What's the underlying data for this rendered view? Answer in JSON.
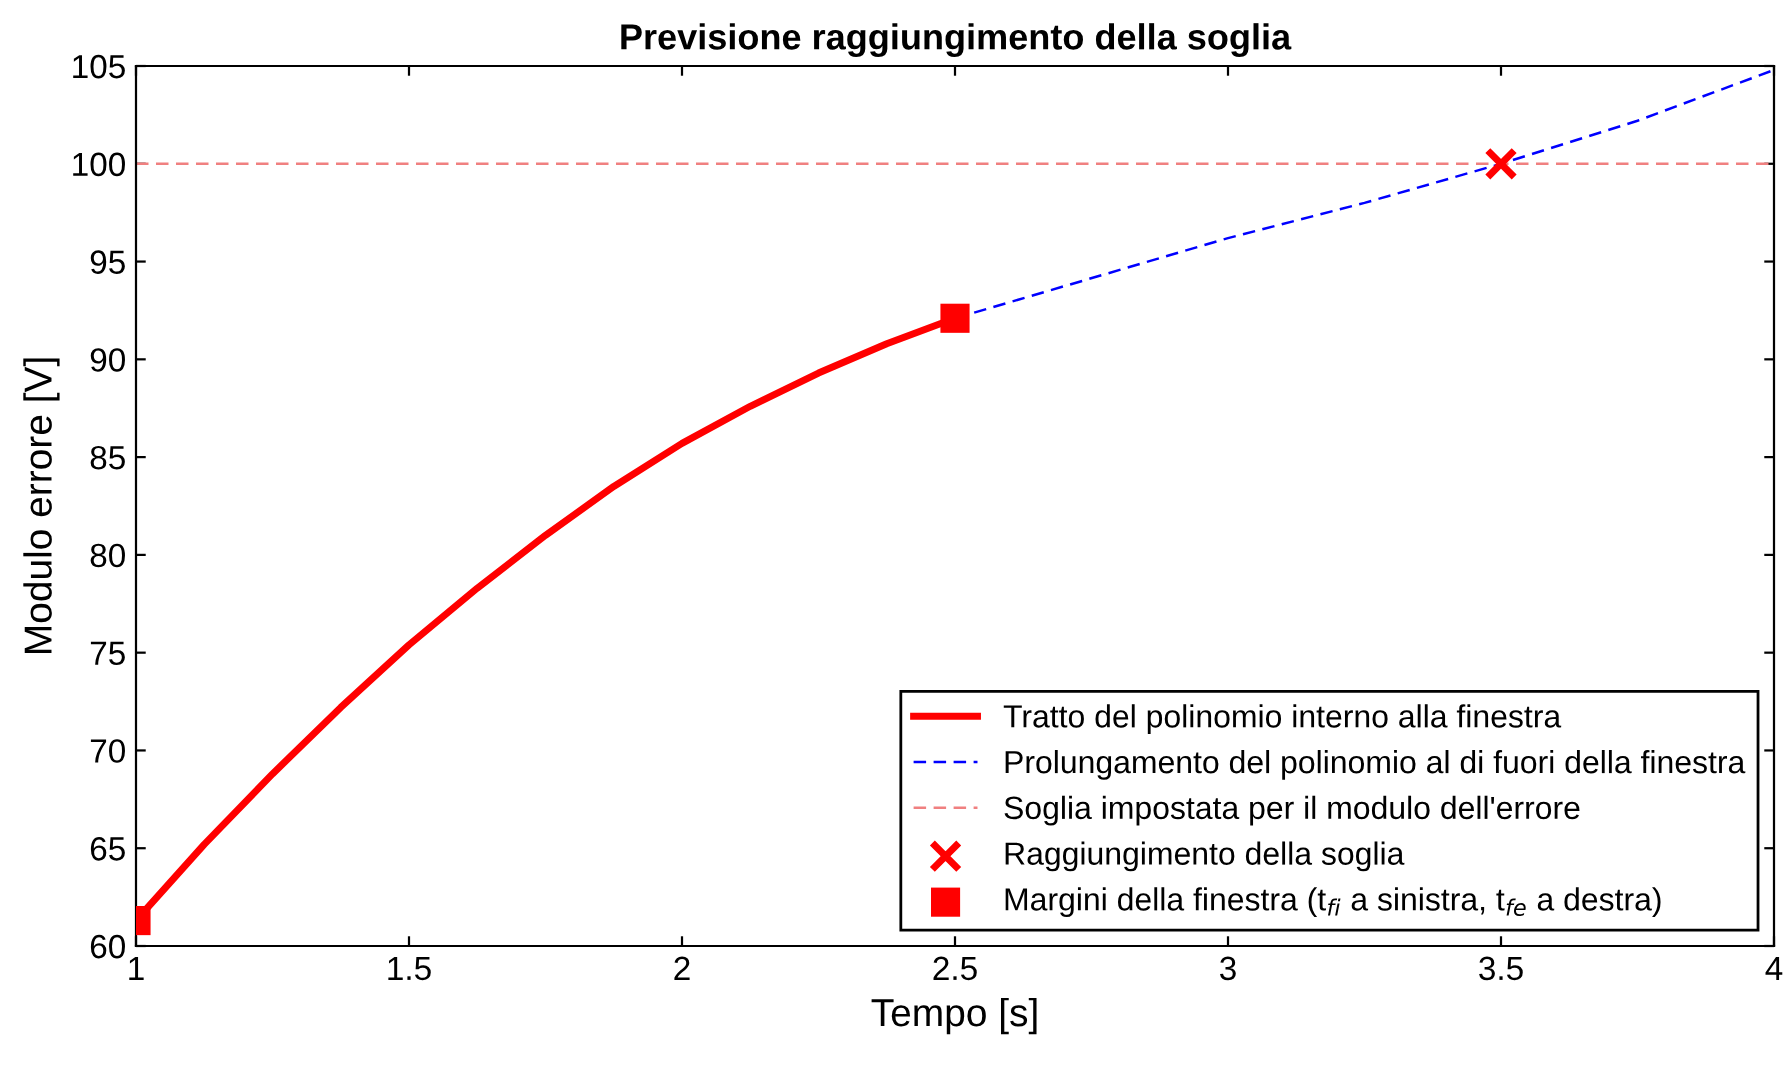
{
  "chart_data": {
    "type": "line",
    "title": "Previsione raggiungimento della soglia",
    "xlabel": "Tempo [s]",
    "ylabel": "Modulo errore [V]",
    "xlim": [
      1,
      4
    ],
    "xticks": [
      1,
      1.5,
      2,
      2.5,
      3,
      3.5,
      4
    ],
    "ylim": [
      60,
      105
    ],
    "yticks": [
      60,
      65,
      70,
      75,
      80,
      85,
      90,
      95,
      100,
      105
    ],
    "grid": false,
    "legend": "bottom right",
    "series": [
      {
        "name": "Tratto del polinomio interno alla finestra",
        "color": "#ff0000",
        "line_style": "solid",
        "x": [
          1,
          1.125,
          1.25,
          1.375,
          1.5,
          1.625,
          1.75,
          1.875,
          2,
          2.125,
          2.25,
          2.375,
          2.5
        ],
        "values": [
          61.3,
          65.2,
          68.8,
          72.2,
          75.4,
          78.3,
          81.0,
          83.5,
          85.7,
          87.6,
          89.3,
          90.8,
          92.1
        ]
      },
      {
        "name": "Prolungamento del polinomio al di fuori della finestra",
        "color": "#0000ff",
        "line_style": "dashed",
        "x": [
          2.5,
          3,
          3.25,
          3.5,
          3.75,
          4
        ],
        "values": [
          92.1,
          96.2,
          98.0,
          100,
          102.2,
          104.8
        ]
      },
      {
        "name": "Raggiungimento della soglia",
        "type": "scatter",
        "color": "#ff0000",
        "marker": "cross",
        "x": [
          3.5
        ],
        "values": [
          100
        ]
      },
      {
        "name": "Margini della finestra (t$_{fi}$ a sinistra, t$_{fe}$ a destra)",
        "type": "scatter",
        "color": "#ff0000",
        "marker": "square",
        "x": [
          1,
          2.5
        ],
        "values": [
          61.3,
          92.1
        ]
      }
    ],
    "ref_lines": [
      {
        "axis": "y",
        "value": 100,
        "label": "Soglia impostata per il modulo dell'errore",
        "color": "#f08080",
        "line_style": "dashed"
      }
    ]
  }
}
